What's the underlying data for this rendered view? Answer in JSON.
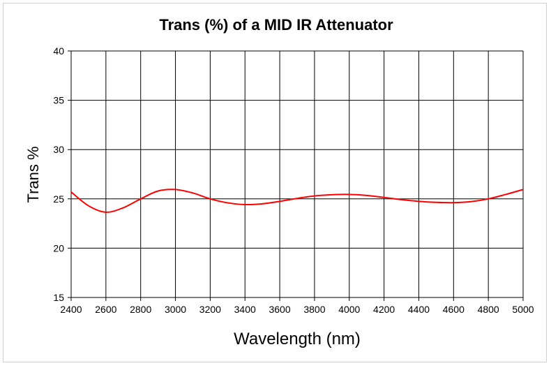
{
  "chart_data": {
    "type": "line",
    "title": "Trans (%) of a MID IR Attenuator",
    "xlabel": "Wavelength (nm)",
    "ylabel": "Trans %",
    "xlim": [
      2400,
      5000
    ],
    "ylim": [
      15,
      40
    ],
    "xticks": [
      2400,
      2600,
      2800,
      3000,
      3200,
      3400,
      3600,
      3800,
      4000,
      4200,
      4400,
      4600,
      4800,
      5000
    ],
    "yticks": [
      15,
      20,
      25,
      30,
      35,
      40
    ],
    "grid": true,
    "series": [
      {
        "name": "Trans %",
        "color": "#ff0000",
        "x": [
          2400,
          2500,
          2600,
          2700,
          2800,
          2900,
          3000,
          3100,
          3200,
          3300,
          3400,
          3500,
          3600,
          3700,
          3800,
          3900,
          4000,
          4100,
          4200,
          4300,
          4400,
          4500,
          4600,
          4700,
          4800,
          4900,
          5000
        ],
        "y": [
          25.7,
          24.3,
          23.65,
          24.1,
          25.0,
          25.8,
          25.95,
          25.6,
          25.0,
          24.6,
          24.42,
          24.5,
          24.75,
          25.05,
          25.3,
          25.42,
          25.45,
          25.35,
          25.15,
          24.92,
          24.75,
          24.65,
          24.62,
          24.72,
          25.0,
          25.45,
          25.95
        ]
      }
    ]
  }
}
